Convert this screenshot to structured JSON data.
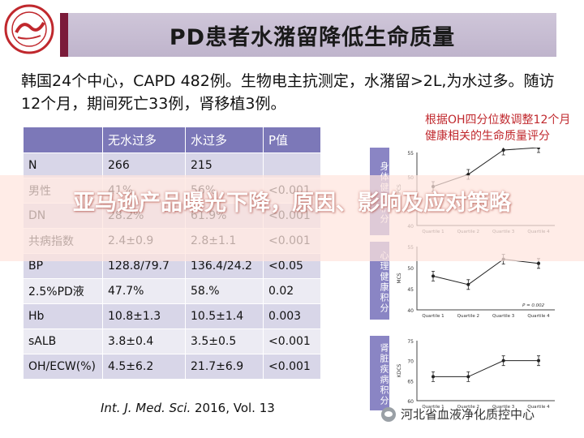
{
  "header": {
    "title": "PD患者水潴留降低生命质量"
  },
  "intro": "韩国24个中心，CAPD 482例。生物电主抗测定，水潴留>2L,为水过多。随访12个月，期间死亡33例，肾移植3例。",
  "table": {
    "headers": [
      "",
      "无水过多",
      "水过多",
      "P值"
    ],
    "rows": [
      [
        "N",
        "266",
        "215",
        ""
      ],
      [
        "男性",
        "41%",
        "56%",
        "<0.001"
      ],
      [
        "DN",
        "28.2%",
        "61.9%",
        "<0.001"
      ],
      [
        "共病指数",
        "2.4±0.9",
        "2.8±1.1",
        "<0.001"
      ],
      [
        "BP",
        "128.8/79.7",
        "136.4/24.2",
        "<0.05"
      ],
      [
        "2.5%PD液",
        "47.7%",
        "58.%",
        "0.02"
      ],
      [
        "Hb",
        "10.8±1.3",
        "10.5±1.4",
        "0.003"
      ],
      [
        "sALB",
        "3.8±0.4",
        "3.5±0.5",
        "<0.001"
      ],
      [
        "OH/ECW(%)",
        "4.5±6.2",
        "21.7±6.9",
        "<0.001"
      ]
    ]
  },
  "citation": {
    "journal": "Int. J. Med. Sci.",
    "rest": " 2016, Vol. 13"
  },
  "note": "根据OH四分位数调整12个月健康相关的生命质量评分",
  "mini_charts": [
    {
      "side_label": "身体健康积分",
      "ylabel": "PCS",
      "yticks": [
        "55",
        "50",
        "45",
        "40"
      ],
      "categories": [
        "Quartile 1",
        "Quartile 2",
        "Quartile 3",
        "Quartile 4"
      ],
      "values": [
        48,
        50.5,
        55.5,
        56
      ],
      "pvalue": ""
    },
    {
      "side_label": "心理健康积分",
      "ylabel": "MCS",
      "yticks": [
        "55",
        "50",
        "45",
        "40"
      ],
      "categories": [
        "Quartile 1",
        "Quartile 2",
        "Quartile 3",
        "Quartile 4"
      ],
      "values": [
        48,
        46,
        52,
        51
      ],
      "pvalue": "P = 0.002"
    },
    {
      "side_label": "肾脏疾病积分",
      "ylabel": "KDCS",
      "yticks": [
        "75",
        "70",
        "65",
        "60"
      ],
      "categories": [
        "Quartile 1",
        "Quartile 2",
        "Quartile 3",
        "Quartile 4"
      ],
      "values": [
        66,
        66,
        70,
        70
      ],
      "pvalue": ""
    }
  ],
  "overlay": {
    "headline": "亚马逊产品曝光下降，原因、影响及应对策略"
  },
  "footer": {
    "source": "河北省血液净化质控中心"
  },
  "colors": {
    "accent": "#7b1b3a",
    "table_header": "#7c78b8",
    "note": "#c0282d"
  }
}
